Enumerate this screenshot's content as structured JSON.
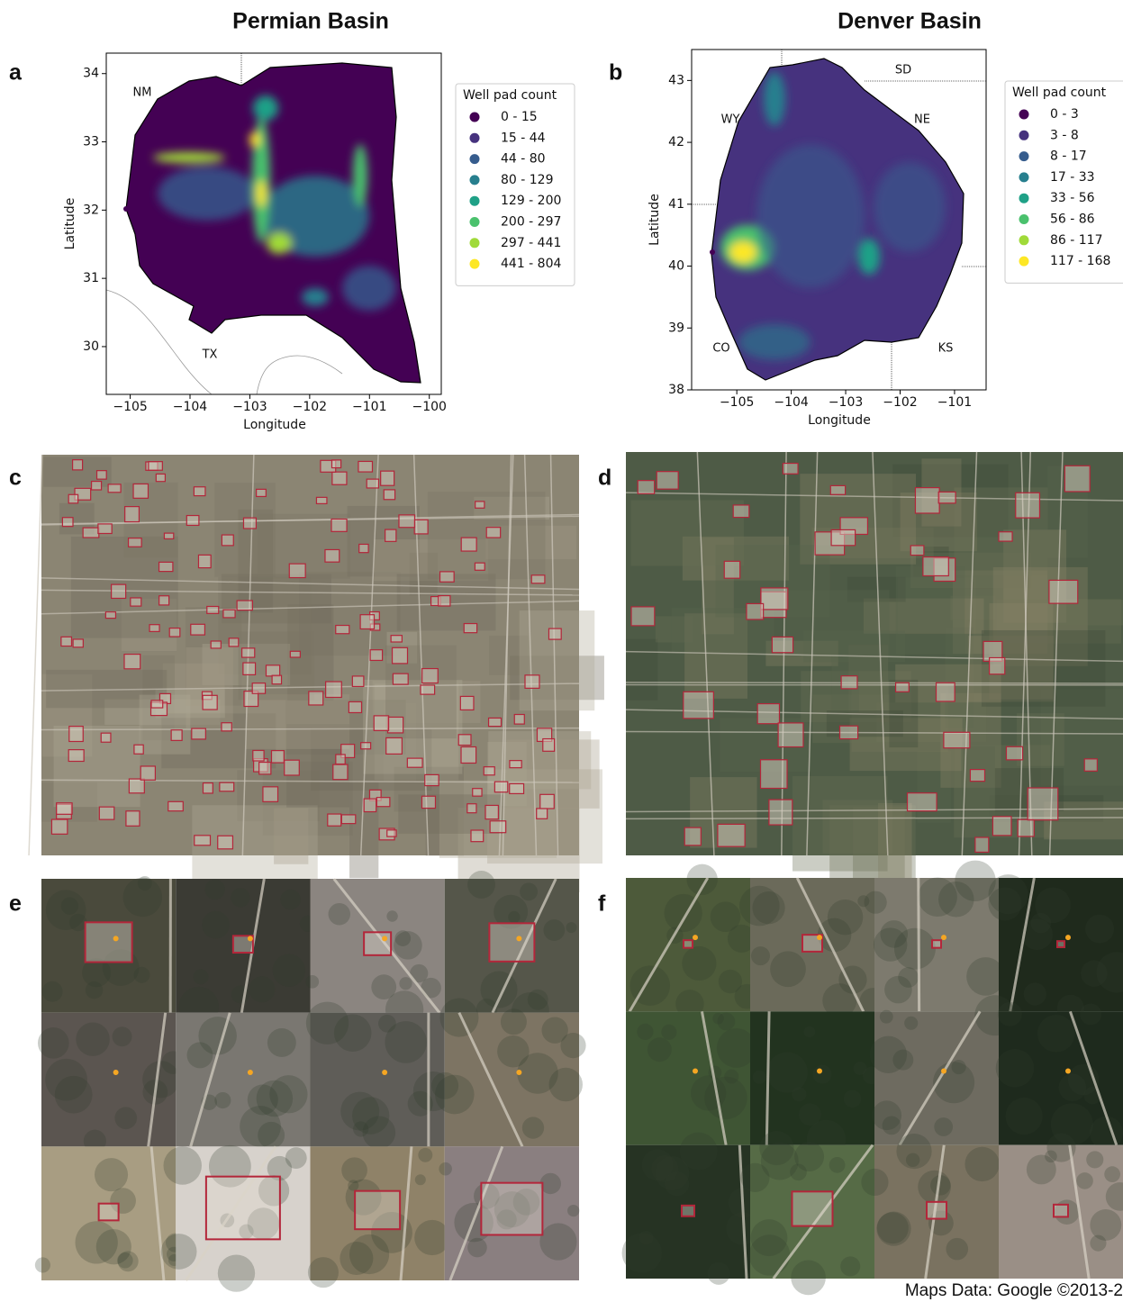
{
  "chart_data": [
    {
      "type": "map",
      "title": "Permian Basin",
      "panel": "a",
      "xlabel": "Longitude",
      "ylabel": "Latitude",
      "xlim": [
        -105.4,
        -99.8
      ],
      "ylim": [
        29.3,
        34.3
      ],
      "xticks": [
        {
          "value": -105,
          "label": "−105"
        },
        {
          "value": -104,
          "label": "−104"
        },
        {
          "value": -103,
          "label": "−103"
        },
        {
          "value": -102,
          "label": "−102"
        },
        {
          "value": -101,
          "label": "−101"
        },
        {
          "value": -100,
          "label": "−100"
        }
      ],
      "yticks": [
        30,
        31,
        32,
        33,
        34
      ],
      "legend_title": "Well pad count",
      "legend": [
        {
          "label": "0 - 15",
          "color": "#440154"
        },
        {
          "label": "15 - 44",
          "color": "#46327e"
        },
        {
          "label": "44 - 80",
          "color": "#365c8d"
        },
        {
          "label": "80 - 129",
          "color": "#277f8e"
        },
        {
          "label": "129 - 200",
          "color": "#1fa187"
        },
        {
          "label": "200 - 297",
          "color": "#4ac16d"
        },
        {
          "label": "297 - 441",
          "color": "#a0da39"
        },
        {
          "label": "441 - 804",
          "color": "#fde725"
        }
      ],
      "region_labels": [
        "NM",
        "TX"
      ]
    },
    {
      "type": "map",
      "title": "Denver Basin",
      "panel": "b",
      "xlabel": "Longitude",
      "ylabel": "Latitude",
      "xlim": [
        -105.83,
        -100.42
      ],
      "ylim": [
        38,
        43.5
      ],
      "xticks": [
        {
          "value": -105,
          "label": "−105"
        },
        {
          "value": -104,
          "label": "−104"
        },
        {
          "value": -103,
          "label": "−103"
        },
        {
          "value": -102,
          "label": "−102"
        },
        {
          "value": -101,
          "label": "−101"
        }
      ],
      "yticks": [
        38,
        39,
        40,
        41,
        42,
        43
      ],
      "legend_title": "Well pad count",
      "legend": [
        {
          "label": "0 - 3",
          "color": "#440154"
        },
        {
          "label": "3 - 8",
          "color": "#46327e"
        },
        {
          "label": "8 - 17",
          "color": "#365c8d"
        },
        {
          "label": "17 - 33",
          "color": "#277f8e"
        },
        {
          "label": "33 - 56",
          "color": "#1fa187"
        },
        {
          "label": "56 - 86",
          "color": "#4ac16d"
        },
        {
          "label": "86 - 117",
          "color": "#a0da39"
        },
        {
          "label": "117 - 168",
          "color": "#fde725"
        }
      ],
      "region_labels": [
        "SD",
        "WY",
        "NE",
        "CO",
        "KS"
      ]
    }
  ],
  "panels": [
    "c",
    "d",
    "e",
    "f"
  ],
  "attribution": "Maps Data: Google ©2013-2"
}
